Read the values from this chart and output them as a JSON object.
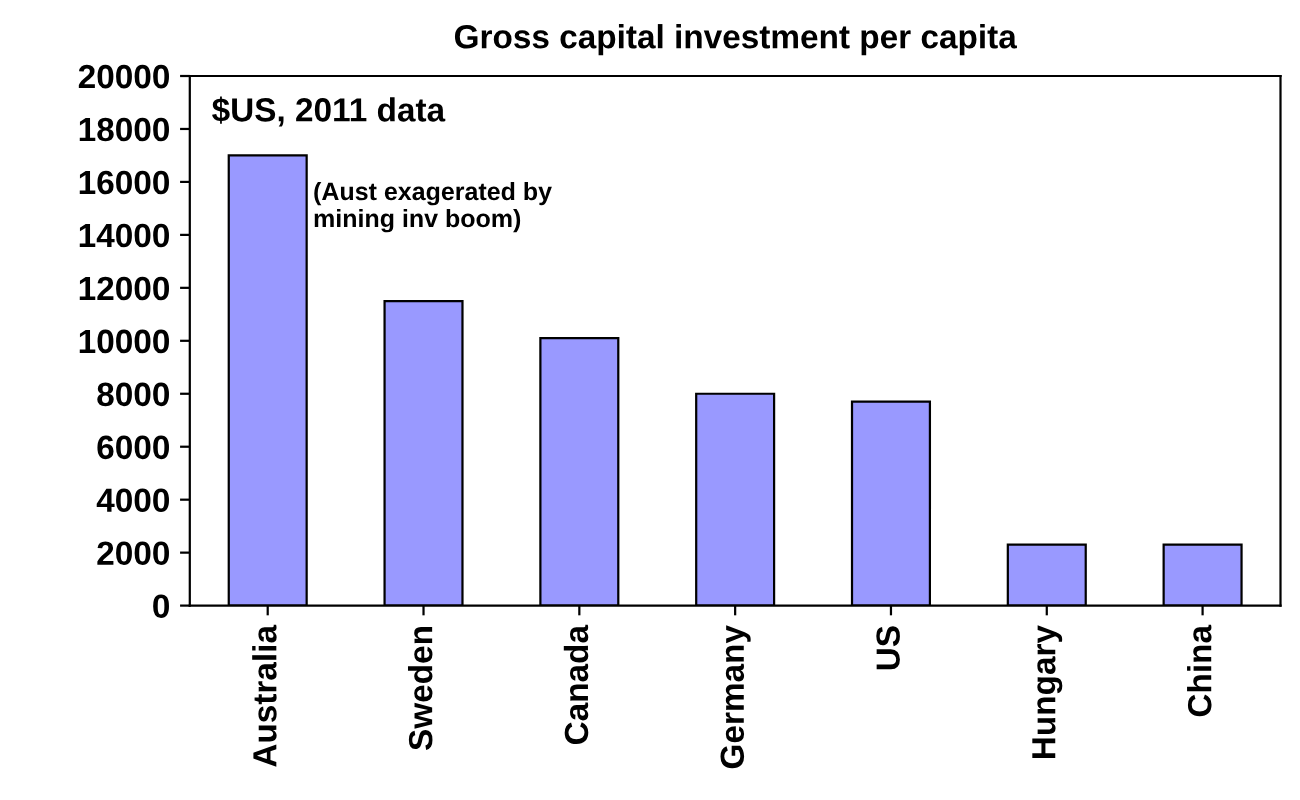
{
  "chart_data": {
    "type": "bar",
    "title": "Gross capital investment per capita",
    "categories": [
      "Australia",
      "Sweden",
      "Canada",
      "Germany",
      "US",
      "Hungary",
      "China"
    ],
    "values": [
      17000,
      11500,
      10100,
      8000,
      7700,
      2300,
      2300
    ],
    "color": "#9999ff",
    "ylim": [
      0,
      20000
    ],
    "yticks": [
      0,
      2000,
      4000,
      6000,
      8000,
      10000,
      12000,
      14000,
      16000,
      18000,
      20000
    ],
    "grid": false,
    "annotations": [
      "$US, 2011 data",
      "(Aust exagerated by\nmining inv boom)"
    ]
  }
}
